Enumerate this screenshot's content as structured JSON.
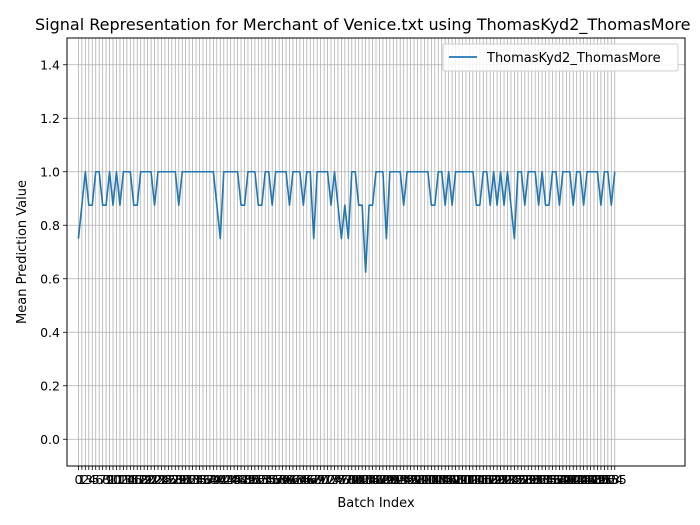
{
  "chart_data": {
    "type": "line",
    "title": "Signal Representation for Merchant of Venice.txt using ThomasKyd2_ThomasMore",
    "xlabel": "Batch Index",
    "ylabel": "Mean Prediction Value",
    "xlim": [
      -3.3,
      175.3
    ],
    "ylim": [
      -0.1,
      1.5
    ],
    "yticks": [
      0.0,
      0.2,
      0.4,
      0.6,
      0.8,
      1.0,
      1.2,
      1.4
    ],
    "ytick_labels": [
      "0.0",
      "0.2",
      "0.4",
      "0.6",
      "0.8",
      "1.0",
      "1.2",
      "1.4"
    ],
    "grid": true,
    "legend_position": "top-right",
    "series": [
      {
        "name": "ThomasKyd2_ThomasMore",
        "color": "#1f77b4",
        "values": [
          0.75,
          0.875,
          1.0,
          0.875,
          0.875,
          1.0,
          1.0,
          0.875,
          0.875,
          1.0,
          0.875,
          1.0,
          0.875,
          1.0,
          1.0,
          1.0,
          0.875,
          0.875,
          1.0,
          1.0,
          1.0,
          1.0,
          0.875,
          1.0,
          1.0,
          1.0,
          1.0,
          1.0,
          1.0,
          0.875,
          1.0,
          1.0,
          1.0,
          1.0,
          1.0,
          1.0,
          1.0,
          1.0,
          1.0,
          1.0,
          0.875,
          0.75,
          1.0,
          1.0,
          1.0,
          1.0,
          1.0,
          0.875,
          0.875,
          1.0,
          1.0,
          1.0,
          0.875,
          0.875,
          1.0,
          1.0,
          0.875,
          1.0,
          1.0,
          1.0,
          1.0,
          0.875,
          1.0,
          1.0,
          1.0,
          0.875,
          1.0,
          1.0,
          0.75,
          1.0,
          1.0,
          1.0,
          1.0,
          0.875,
          1.0,
          0.875,
          0.75,
          0.875,
          0.75,
          1.0,
          1.0,
          0.875,
          0.875,
          0.625,
          0.875,
          0.875,
          1.0,
          1.0,
          1.0,
          0.75,
          1.0,
          1.0,
          1.0,
          1.0,
          0.875,
          1.0,
          1.0,
          1.0,
          1.0,
          1.0,
          1.0,
          1.0,
          0.875,
          0.875,
          1.0,
          1.0,
          0.875,
          1.0,
          0.875,
          1.0,
          1.0,
          1.0,
          1.0,
          1.0,
          1.0,
          0.875,
          0.875,
          1.0,
          1.0,
          0.875,
          1.0,
          0.875,
          1.0,
          0.875,
          1.0,
          0.875,
          0.75,
          1.0,
          1.0,
          0.875,
          1.0,
          1.0,
          1.0,
          0.875,
          1.0,
          0.875,
          0.875,
          1.0,
          1.0,
          0.875,
          1.0,
          1.0,
          1.0,
          0.875,
          1.0,
          1.0,
          0.875,
          1.0,
          1.0,
          1.0,
          1.0,
          0.875,
          1.0,
          1.0,
          0.875,
          1.0
        ]
      }
    ]
  }
}
